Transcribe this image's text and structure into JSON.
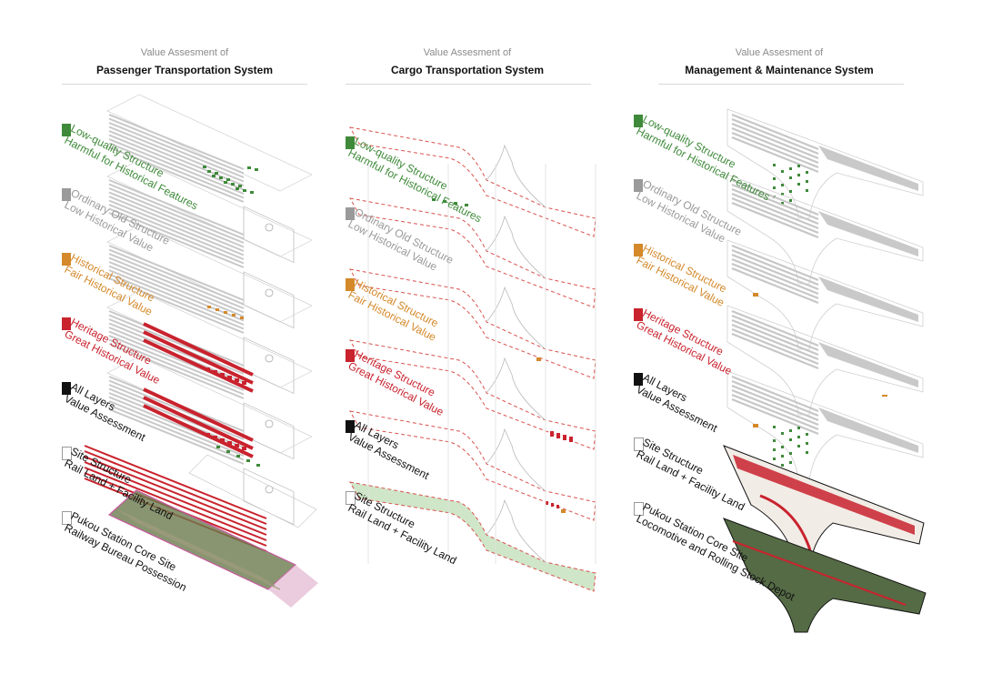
{
  "colors": {
    "green": "#3f8a3a",
    "grey": "#9a9a9a",
    "orange": "#d4892a",
    "red": "#c9232e",
    "black": "#111111",
    "dash_red": "#d9534f"
  },
  "columns": [
    {
      "subtitle": "Value Assesment of",
      "title": "Passenger Transportation System",
      "layers": [
        {
          "l1": "Low-quality Structure",
          "l2": "Harmful for Historical Features",
          "swatch": "green"
        },
        {
          "l1": "Ordinary Old Structure",
          "l2": "Low Historical Value",
          "swatch": "grey"
        },
        {
          "l1": "Historical Structure",
          "l2": "Fair Historical Value",
          "swatch": "orange"
        },
        {
          "l1": "Heritage Structure",
          "l2": "Great Historical Value",
          "swatch": "red"
        },
        {
          "l1": "All Layers",
          "l2": "Value Assessment",
          "swatch": "black"
        },
        {
          "l1": "Site Structure",
          "l2": "Rail Land + Facility Land",
          "swatch": "empty"
        },
        {
          "l1": "Pukou Station Core Site",
          "l2": "Railway Bureau Possession",
          "swatch": "empty"
        }
      ]
    },
    {
      "subtitle": "Value Assesment of",
      "title": "Cargo Transportation System",
      "layers": [
        {
          "l1": "Low-quality Structure",
          "l2": "Harmful for Historical Features",
          "swatch": "green"
        },
        {
          "l1": "Ordinary Old Structure",
          "l2": "Low Historical Value",
          "swatch": "grey"
        },
        {
          "l1": "Historical Structure",
          "l2": "Fair Historical Value",
          "swatch": "orange"
        },
        {
          "l1": "Heritage Structure",
          "l2": "Great Historical Value",
          "swatch": "red"
        },
        {
          "l1": "All Layers",
          "l2": "Value Assessment",
          "swatch": "black"
        },
        {
          "l1": "Site Structure",
          "l2": "Rail Land + Facility Land",
          "swatch": "empty"
        }
      ]
    },
    {
      "subtitle": "Value Assesment of",
      "title": "Management & Maintenance System",
      "layers": [
        {
          "l1": "Low-quality Structure",
          "l2": "Harmful for Historical Features",
          "swatch": "green"
        },
        {
          "l1": "Ordinary Old Structure",
          "l2": "Low Historical Value",
          "swatch": "grey"
        },
        {
          "l1": "Historical Structure",
          "l2": "Fair Historical Value",
          "swatch": "orange"
        },
        {
          "l1": "Heritage Structure",
          "l2": "Great Historical Value",
          "swatch": "red"
        },
        {
          "l1": "All Layers",
          "l2": "Value Assessment",
          "swatch": "black"
        },
        {
          "l1": "Site Structure",
          "l2": "Rail Land + Facility Land",
          "swatch": "empty"
        },
        {
          "l1": "Pukou Station Core Site",
          "l2": "Locomotive and Rolling Stock Depot",
          "swatch": "empty"
        }
      ]
    }
  ]
}
